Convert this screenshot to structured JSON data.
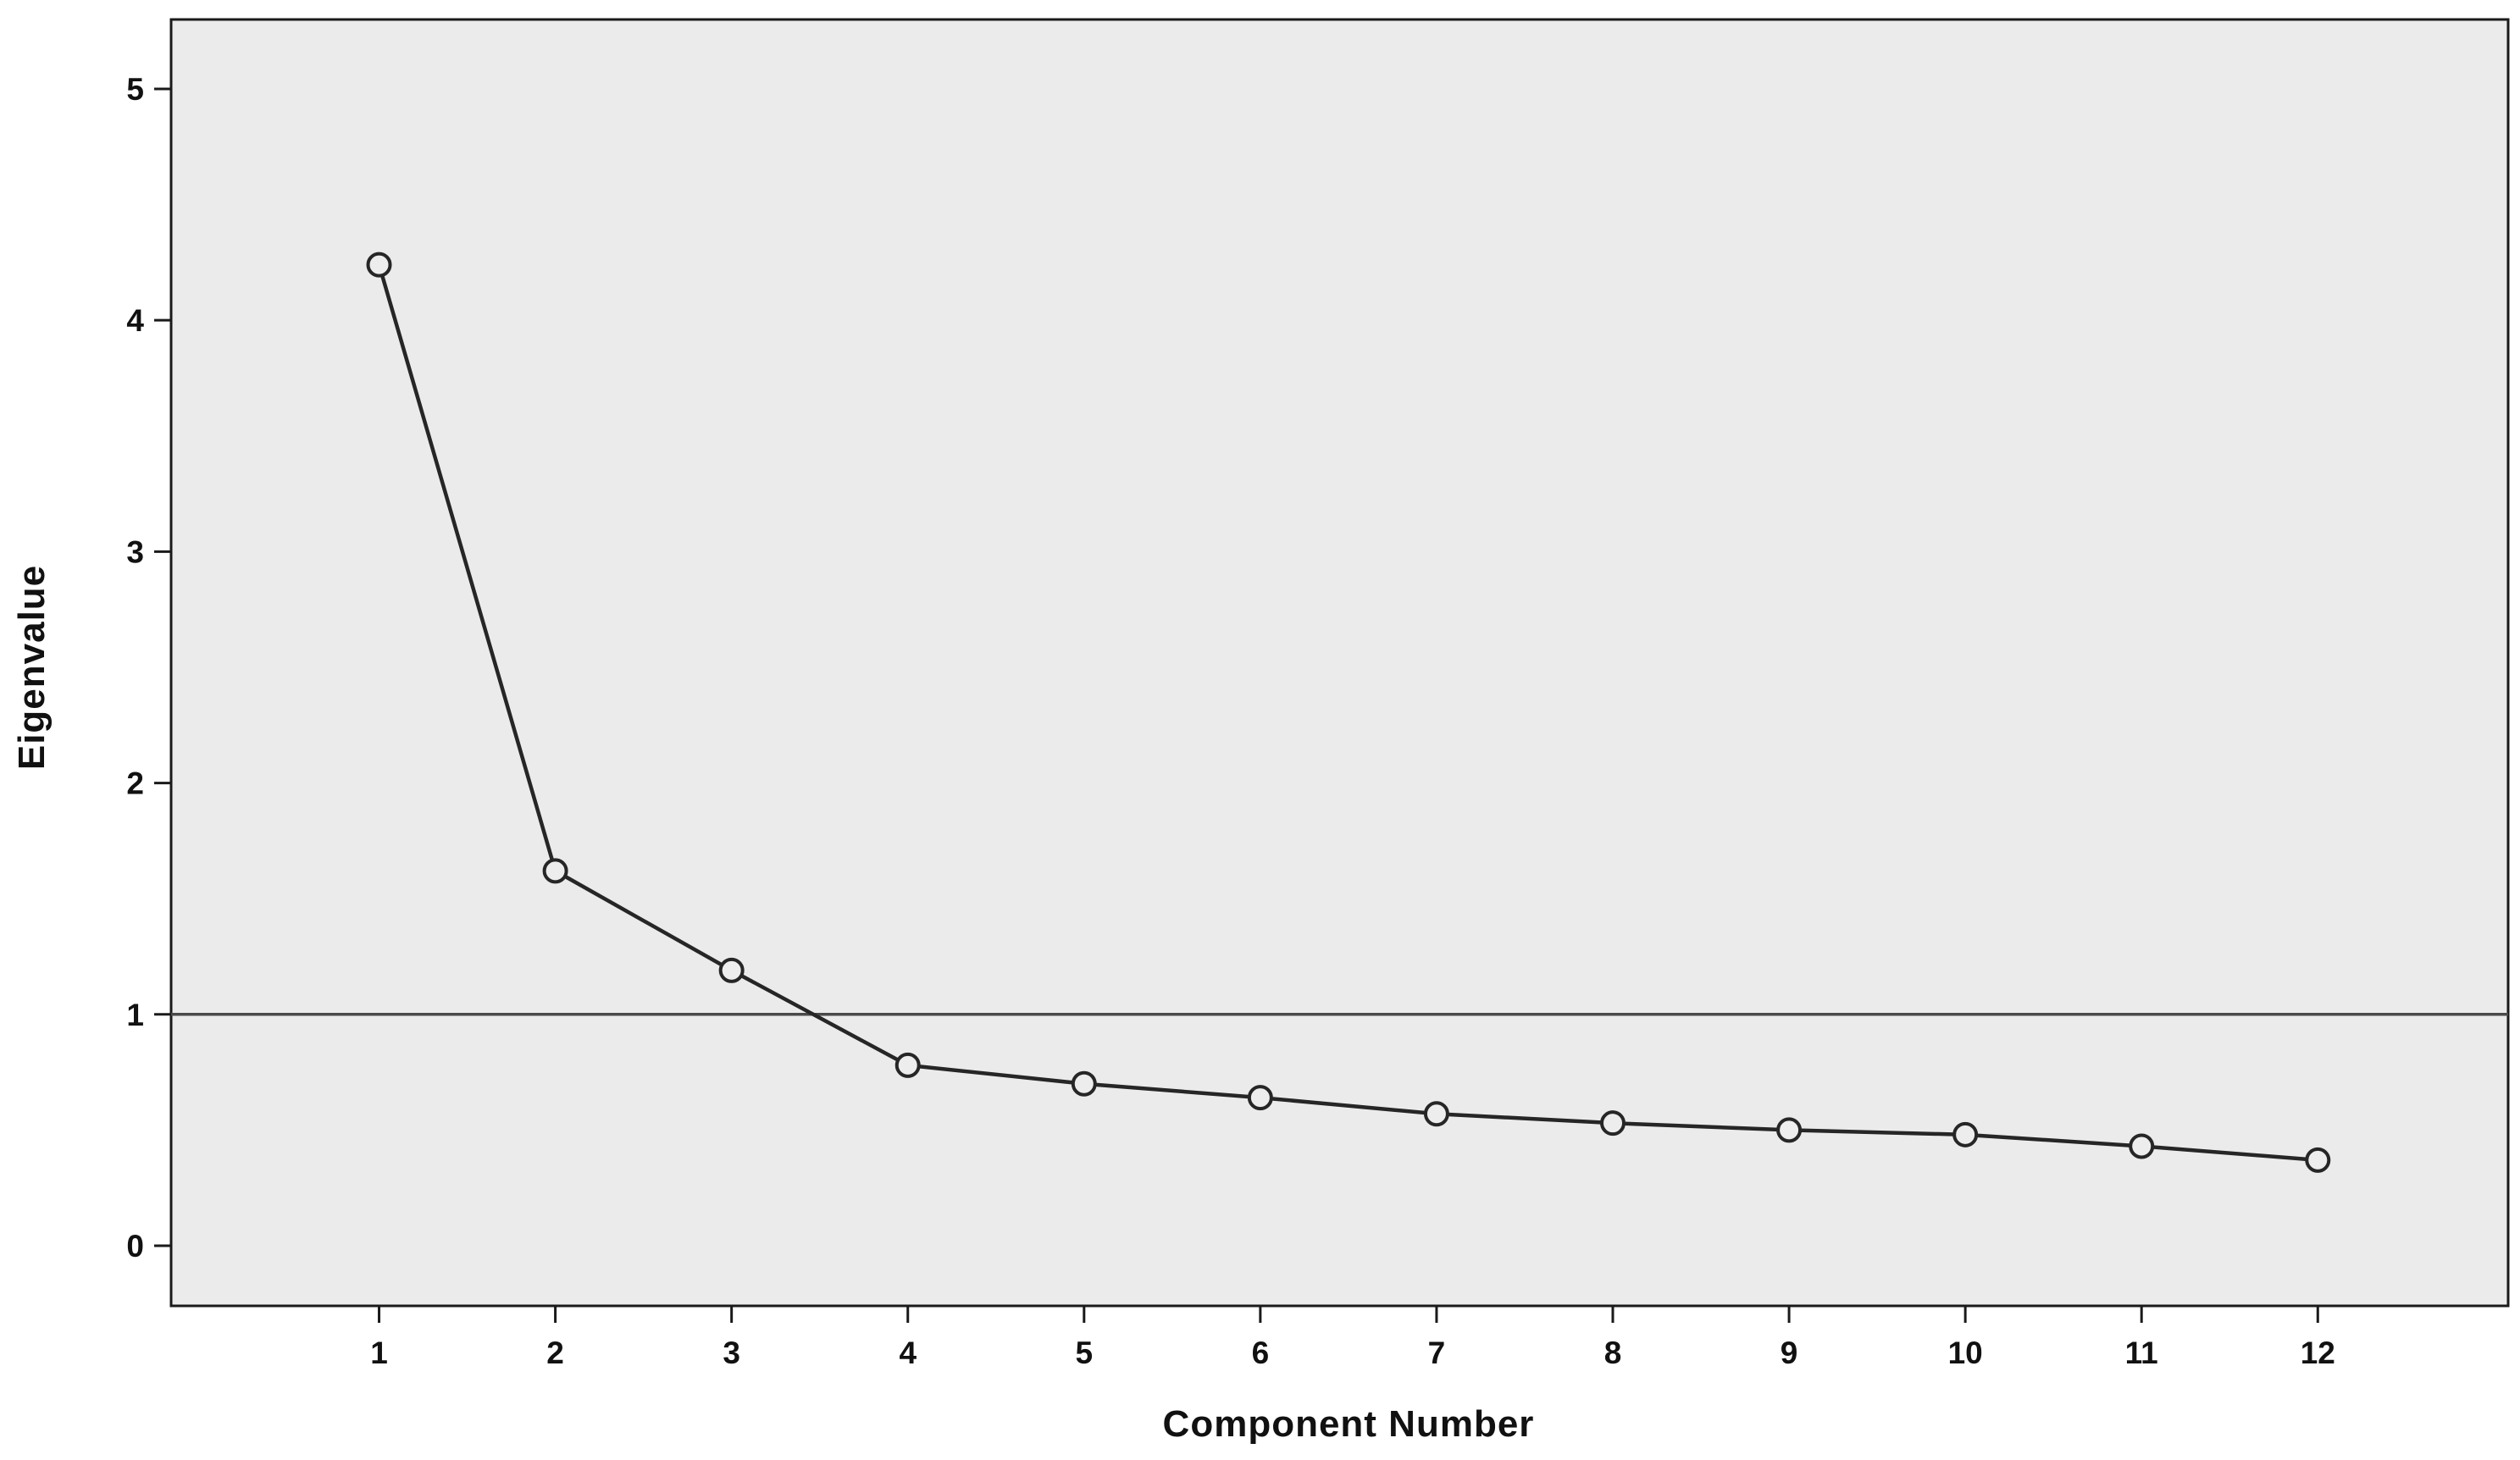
{
  "chart_data": {
    "type": "line",
    "title": "",
    "xlabel": "Component Number",
    "ylabel": "Eigenvalue",
    "x": [
      1,
      2,
      3,
      4,
      5,
      6,
      7,
      8,
      9,
      10,
      11,
      12
    ],
    "series": [
      {
        "name": "Eigenvalue",
        "values": [
          4.24,
          1.62,
          1.19,
          0.78,
          0.7,
          0.64,
          0.57,
          0.53,
          0.5,
          0.48,
          0.43,
          0.37
        ]
      }
    ],
    "x_ticks": [
      1,
      2,
      3,
      4,
      5,
      6,
      7,
      8,
      9,
      10,
      11,
      12
    ],
    "y_ticks": [
      0,
      1,
      2,
      3,
      4,
      5
    ],
    "xlim": [
      -0.18,
      13.08
    ],
    "ylim": [
      -0.26,
      5.3
    ],
    "reference_line_y": 1,
    "grid": false,
    "legend": "none",
    "marker": "open-circle",
    "colors": {
      "line": "#262626",
      "marker_fill": "#ededed",
      "reference_line": "#4a4a4a",
      "plot_background": "#ebebeb",
      "plot_border": "#1a1a1a",
      "axis_text": "#111111"
    }
  }
}
